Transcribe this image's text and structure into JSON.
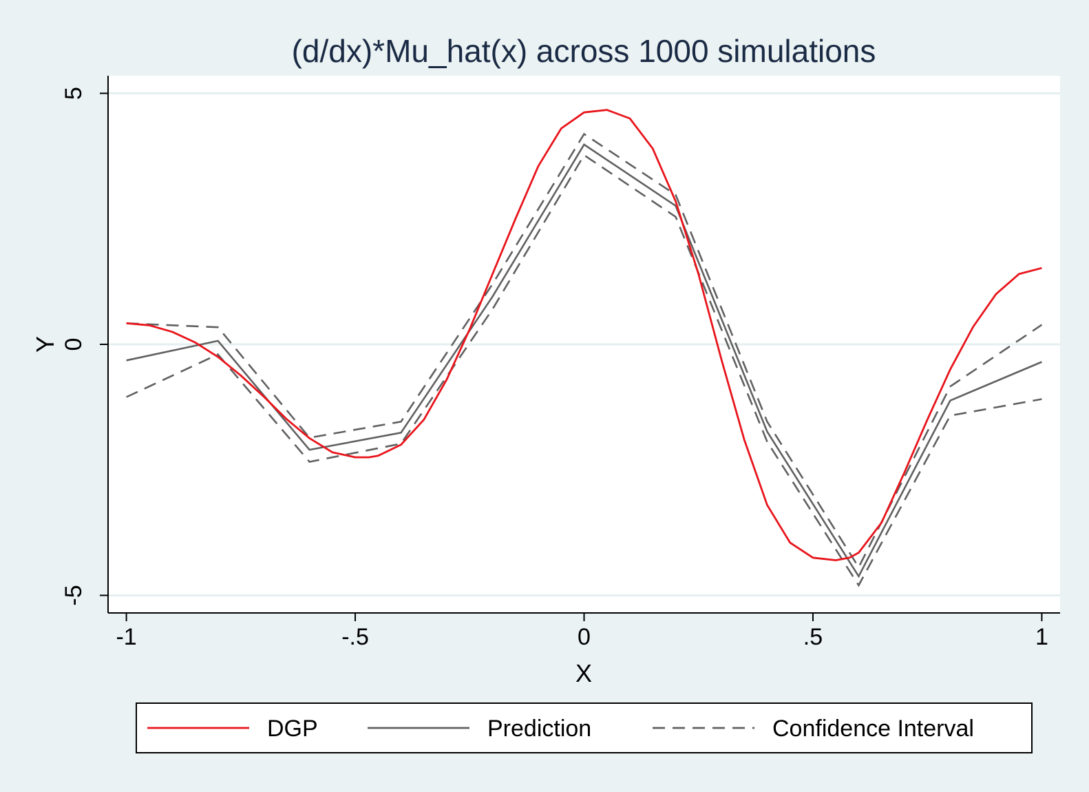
{
  "chart_data": {
    "type": "line",
    "title": "(d/dx)*Mu_hat(x) across 1000 simulations",
    "xlabel": "X",
    "ylabel": "Y",
    "xlim": [
      -1.04,
      1.04
    ],
    "ylim": [
      -5.35,
      5.35
    ],
    "xticks": [
      {
        "value": -1,
        "label": "-1"
      },
      {
        "value": -0.5,
        "label": "-.5"
      },
      {
        "value": 0,
        "label": "0"
      },
      {
        "value": 0.5,
        "label": ".5"
      },
      {
        "value": 1,
        "label": "1"
      }
    ],
    "yticks": [
      {
        "value": -5,
        "label": "-5"
      },
      {
        "value": 0,
        "label": "0"
      },
      {
        "value": 5,
        "label": "5"
      }
    ],
    "grid": "horizontal",
    "legend_position": "bottom",
    "series": [
      {
        "name": "DGP",
        "color": "#e8141b",
        "style": "solid",
        "x": [
          -1.0,
          -0.95,
          -0.9,
          -0.85,
          -0.8,
          -0.75,
          -0.7,
          -0.65,
          -0.6,
          -0.55,
          -0.5,
          -0.47,
          -0.45,
          -0.4,
          -0.35,
          -0.3,
          -0.25,
          -0.2,
          -0.15,
          -0.1,
          -0.05,
          0.0,
          0.05,
          0.1,
          0.15,
          0.2,
          0.25,
          0.3,
          0.35,
          0.4,
          0.45,
          0.5,
          0.55,
          0.58,
          0.6,
          0.65,
          0.7,
          0.75,
          0.8,
          0.85,
          0.9,
          0.95,
          1.0
        ],
        "y": [
          0.42,
          0.38,
          0.25,
          0.04,
          -0.25,
          -0.62,
          -1.04,
          -1.49,
          -1.87,
          -2.15,
          -2.25,
          -2.25,
          -2.22,
          -2.0,
          -1.5,
          -0.7,
          0.3,
          1.4,
          2.5,
          3.55,
          4.3,
          4.62,
          4.67,
          4.5,
          3.9,
          2.85,
          1.4,
          -0.3,
          -1.9,
          -3.2,
          -3.95,
          -4.25,
          -4.3,
          -4.25,
          -4.15,
          -3.55,
          -2.55,
          -1.5,
          -0.5,
          0.35,
          1.0,
          1.4,
          1.52
        ]
      },
      {
        "name": "Prediction",
        "color": "#606060",
        "style": "solid",
        "x": [
          -1.0,
          -0.8,
          -0.6,
          -0.4,
          -0.2,
          0.0,
          0.2,
          0.4,
          0.6,
          0.8,
          1.0
        ],
        "y": [
          -0.32,
          0.07,
          -2.1,
          -1.76,
          0.95,
          3.98,
          2.76,
          -1.74,
          -4.62,
          -1.12,
          -0.35
        ]
      },
      {
        "name": "Confidence Interval",
        "color": "#606060",
        "style": "dashed",
        "x": [
          -1.0,
          -0.8,
          -0.6,
          -0.4,
          -0.2,
          0.0,
          0.2,
          0.4,
          0.6,
          0.8,
          1.0
        ],
        "y": [
          0.42,
          0.34,
          -1.86,
          -1.54,
          1.2,
          4.19,
          2.98,
          -1.54,
          -4.44,
          -0.84,
          0.39
        ]
      },
      {
        "name": "",
        "color": "#606060",
        "style": "dashed",
        "x": [
          -1.0,
          -0.8,
          -0.6,
          -0.4,
          -0.2,
          0.0,
          0.2,
          0.4,
          0.6,
          0.8,
          1.0
        ],
        "y": [
          -1.05,
          -0.2,
          -2.34,
          -1.98,
          0.7,
          3.77,
          2.54,
          -1.94,
          -4.8,
          -1.42,
          -1.09
        ]
      }
    ],
    "legend": [
      {
        "label": "DGP",
        "color": "#e8141b",
        "style": "solid"
      },
      {
        "label": "Prediction",
        "color": "#606060",
        "style": "solid"
      },
      {
        "label": "Confidence Interval",
        "color": "#606060",
        "style": "dashed"
      }
    ]
  }
}
